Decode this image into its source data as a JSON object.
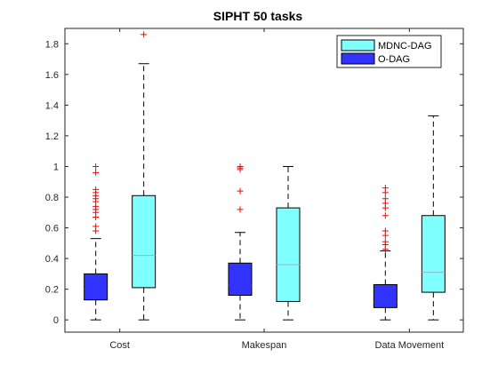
{
  "chart_data": {
    "type": "boxplot",
    "title": "SIPHT 50 tasks",
    "xlabel": "",
    "ylabel": "",
    "ylim": [
      -0.08,
      1.9
    ],
    "yticks": [
      0,
      0.2,
      0.4,
      0.6,
      0.8,
      1,
      1.2,
      1.4,
      1.6,
      1.8
    ],
    "ytick_labels": [
      "0",
      "0.2",
      "0.4",
      "0.6",
      "0.8",
      "1",
      "1.2",
      "1.4",
      "1.6",
      "1.8"
    ],
    "categories": [
      "Cost",
      "Makespan",
      "Data Movement"
    ],
    "legend": {
      "placement": "top-right",
      "entries": [
        {
          "name": "MDNC-DAG",
          "color": "#80FFFF"
        },
        {
          "name": "O-DAG",
          "color": "#3333FF"
        }
      ]
    },
    "series": [
      {
        "name": "O-DAG",
        "color": "#3333FF",
        "median_color": "#3333FF",
        "boxes": [
          {
            "category": "Cost",
            "whisker_low": 0,
            "q1": 0.13,
            "median": 0.2,
            "q3": 0.3,
            "whisker_high": 0.53,
            "outliers": [
              1.0,
              0.96,
              0.85,
              0.83,
              0.81,
              0.79,
              0.77,
              0.74,
              0.72,
              0.7,
              0.67,
              0.61,
              0.58
            ]
          },
          {
            "category": "Makespan",
            "whisker_low": 0,
            "q1": 0.16,
            "median": 0.23,
            "q3": 0.37,
            "whisker_high": 0.57,
            "outliers": [
              1.0,
              0.99,
              0.98,
              0.84,
              0.72
            ]
          },
          {
            "category": "Data Movement",
            "whisker_low": 0,
            "q1": 0.08,
            "median": 0.12,
            "q3": 0.23,
            "whisker_high": 0.45,
            "outliers": [
              0.86,
              0.83,
              0.79,
              0.76,
              0.73,
              0.68,
              0.58,
              0.55,
              0.51,
              0.49,
              0.46
            ]
          }
        ]
      },
      {
        "name": "MDNC-DAG",
        "color": "#80FFFF",
        "median_color": "#8FB0CF",
        "boxes": [
          {
            "category": "Cost",
            "whisker_low": 0,
            "q1": 0.21,
            "median": 0.42,
            "q3": 0.81,
            "whisker_high": 1.67,
            "outliers": [
              1.86
            ]
          },
          {
            "category": "Makespan",
            "whisker_low": 0,
            "q1": 0.12,
            "median": 0.36,
            "q3": 0.73,
            "whisker_high": 1.0,
            "outliers": []
          },
          {
            "category": "Data Movement",
            "whisker_low": 0,
            "q1": 0.18,
            "median": 0.31,
            "q3": 0.68,
            "whisker_high": 1.33,
            "outliers": []
          }
        ]
      }
    ]
  }
}
